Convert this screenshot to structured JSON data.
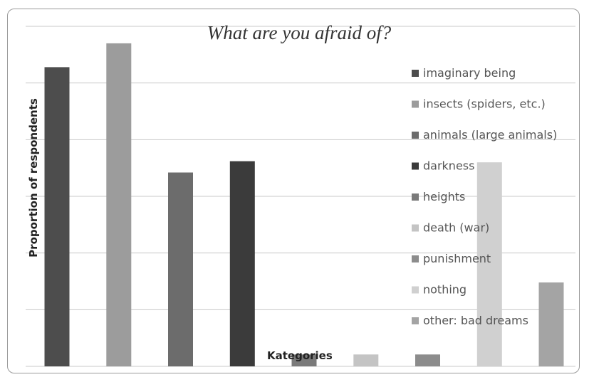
{
  "chart_data": {
    "type": "bar",
    "title": "What are you afraid of?",
    "xlabel": "Kategories",
    "ylabel": "Proportion of respondents",
    "ylim": [
      0,
      6
    ],
    "grid": true,
    "legend_position": "right",
    "categories": [
      "imaginary being",
      "insects (spiders, etc.)",
      "animals (large animals)",
      "darkness",
      "heights",
      "death (war)",
      "punishment",
      "nothing",
      "other: bad dreams"
    ],
    "values": [
      5.28,
      5.7,
      3.42,
      3.62,
      0.21,
      0.21,
      0.21,
      3.6,
      1.48
    ],
    "colors": [
      "#4d4d4d",
      "#9c9c9c",
      "#6c6c6c",
      "#3b3b3b",
      "#7a7a7a",
      "#c4c4c4",
      "#8c8c8c",
      "#d0d0d0",
      "#a4a4a4"
    ],
    "legend": [
      "imaginary being",
      "insects (spiders, etc.)",
      "animals (large animals)",
      "darkness",
      "heights",
      "death (war)",
      "punishment",
      "nothing",
      "other: bad dreams"
    ]
  }
}
